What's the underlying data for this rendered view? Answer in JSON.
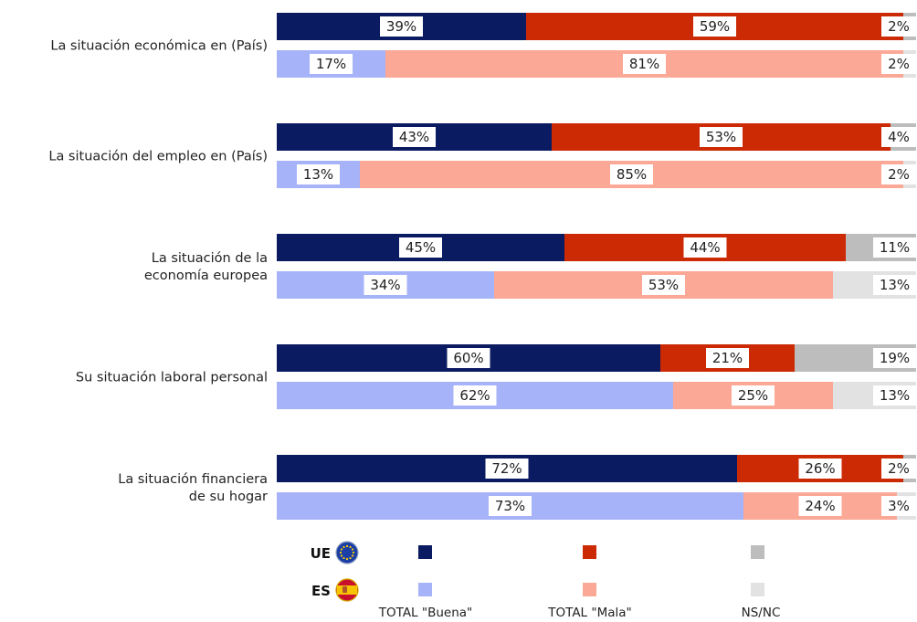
{
  "chart_data": {
    "type": "bar",
    "orientation": "horizontal",
    "stacked": true,
    "percent_stacked": true,
    "categories": [
      [
        "La situación económica en (País)"
      ],
      [
        "La situación del empleo en (País)"
      ],
      [
        "La situación de la",
        "economía europea"
      ],
      [
        "Su situación laboral personal"
      ],
      [
        "La situación financiera",
        "de su hogar"
      ]
    ],
    "groups": [
      {
        "code": "UE",
        "icon": "eu-flag-icon"
      },
      {
        "code": "ES",
        "icon": "spain-flag-icon"
      }
    ],
    "series": [
      {
        "name": "TOTAL \"Buena\"",
        "colors": {
          "UE": "#0a1b61",
          "ES": "#a7b3f8"
        }
      },
      {
        "name": "TOTAL \"Mala\"",
        "colors": {
          "UE": "#cc2a04",
          "ES": "#fba896"
        }
      },
      {
        "name": "NS/NC",
        "colors": {
          "UE": "#bdbdbd",
          "ES": "#e2e2e2"
        }
      }
    ],
    "values": {
      "UE": [
        [
          39,
          59,
          2
        ],
        [
          43,
          53,
          4
        ],
        [
          45,
          44,
          11
        ],
        [
          60,
          21,
          19
        ],
        [
          72,
          26,
          2
        ]
      ],
      "ES": [
        [
          17,
          81,
          2
        ],
        [
          13,
          85,
          2
        ],
        [
          34,
          53,
          13
        ],
        [
          62,
          25,
          13
        ],
        [
          73,
          24,
          3
        ]
      ]
    },
    "unit": "%",
    "xlim": [
      0,
      100
    ],
    "legend_position": "bottom"
  }
}
